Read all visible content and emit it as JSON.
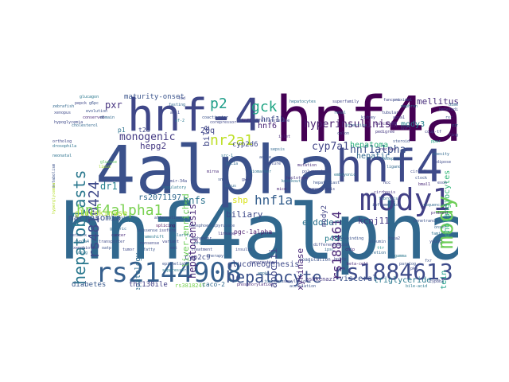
{
  "wordcloud": {
    "words": [
      {
        "text": "hnf4alpha",
        "color": "#31688e"
      },
      {
        "text": "4alpha",
        "color": "#3b518b"
      },
      {
        "text": "hnf4a",
        "color": "#440154"
      },
      {
        "text": "hnf4",
        "color": "#3e4a89"
      },
      {
        "text": "hnf-4",
        "color": "#3f4788"
      },
      {
        "text": "rs2144908",
        "color": "#355f8d"
      },
      {
        "text": "mody1",
        "color": "#424086"
      },
      {
        "text": "mody",
        "color": "#6ece58"
      },
      {
        "text": "rs1884613",
        "color": "#3e4c8a"
      },
      {
        "text": "hepatocyte",
        "color": "#3b528b"
      },
      {
        "text": "rs1884614",
        "color": "#482576"
      },
      {
        "text": "hepatoblasts",
        "color": "#2a788e"
      },
      {
        "text": "rs4810424",
        "color": "#3e4989"
      },
      {
        "text": "hnf4alpha1",
        "color": "#7ad151"
      },
      {
        "text": "hyperinsulinism",
        "color": "#481f70"
      },
      {
        "text": "gck",
        "color": "#21a685"
      },
      {
        "text": "p2",
        "color": "#1f9e89"
      },
      {
        "text": "nr2a1",
        "color": "#bddf26"
      },
      {
        "text": "hnf1a",
        "color": "#355f8d"
      },
      {
        "text": "monogenic",
        "color": "#443a83"
      },
      {
        "text": "hepatogenesis",
        "color": "#482878"
      },
      {
        "text": "cyp7a1",
        "color": "#414487"
      },
      {
        "text": "hnf1alpha",
        "color": "#3b518b"
      },
      {
        "text": "mody3",
        "color": "#26828e"
      },
      {
        "text": "hepatoma",
        "color": "#2db27d"
      },
      {
        "text": "hnf1b",
        "color": "#3e4a89"
      },
      {
        "text": "hnf6",
        "color": "#482475"
      },
      {
        "text": "mellitus",
        "color": "#472d7b"
      },
      {
        "text": "pxr",
        "color": "#46337f"
      },
      {
        "text": "bile",
        "color": "#3f4788"
      },
      {
        "text": "20q",
        "color": "#404588"
      },
      {
        "text": "hepg2",
        "color": "#453882"
      },
      {
        "text": "liver-enriched",
        "color": "#6ece58"
      },
      {
        "text": "maturity-onset",
        "color": "#3a548c"
      },
      {
        "text": "shp",
        "color": "#d8e219"
      },
      {
        "text": "hnfs",
        "color": "#2c728e"
      },
      {
        "text": "dr1",
        "color": "#26828e"
      },
      {
        "text": "macrosomia",
        "color": "#3b528b"
      },
      {
        "text": "rs2071197",
        "color": "#31688e"
      },
      {
        "text": "biliary",
        "color": "#3e4a89"
      },
      {
        "text": "glucokinase",
        "color": "#addc30"
      },
      {
        "text": "apociii",
        "color": "#404688"
      },
      {
        "text": "carboxykinase",
        "color": "#482878"
      },
      {
        "text": "endoderm",
        "color": "#2c728e"
      },
      {
        "text": "kcnj11",
        "color": "#443983"
      },
      {
        "text": "p450",
        "color": "#287c8e"
      },
      {
        "text": "hepatic",
        "color": "#31688e"
      },
      {
        "text": "cholangiocytes",
        "color": "#35b779"
      },
      {
        "text": "mody2",
        "color": "#414487"
      },
      {
        "text": "apolipoprotein",
        "color": "#1fa088"
      },
      {
        "text": "gluconeogenesis",
        "color": "#3e4989"
      },
      {
        "text": "pgc-1alpha",
        "color": "#481a6c"
      },
      {
        "text": "cyp2d6",
        "color": "#3f4889"
      },
      {
        "text": "cyp2c9",
        "color": "#3e4a89"
      },
      {
        "text": "hepatology",
        "color": "#2f6c8e"
      },
      {
        "text": "diabetes",
        "color": "#38598c"
      },
      {
        "text": "thr130ile",
        "color": "#424086"
      },
      {
        "text": "rs3818247",
        "color": "#7ad151"
      },
      {
        "text": "caco-2",
        "color": "#31688e"
      },
      {
        "text": "ashkenazi",
        "color": "#453781"
      },
      {
        "text": "visceral",
        "color": "#3b528b"
      },
      {
        "text": "triglyceride",
        "color": "#2a788e"
      },
      {
        "text": "t2d",
        "color": "#3f4788"
      },
      {
        "text": "p1",
        "color": "#2c728e"
      },
      {
        "text": "coagulation",
        "color": "#3b528b"
      },
      {
        "text": "hnf1",
        "color": "#482677"
      },
      {
        "text": "pancreatic",
        "color": "#404588"
      },
      {
        "text": "insulin",
        "color": "#3e4c8a"
      },
      {
        "text": "fatty",
        "color": "#3a548c"
      },
      {
        "text": "linkage",
        "color": "#453882"
      },
      {
        "text": "enhancer",
        "color": "#3e4989"
      },
      {
        "text": "promoter",
        "color": "#31688e"
      },
      {
        "text": "islet",
        "color": "#482878"
      },
      {
        "text": "hepatocytes",
        "color": "#2c728e"
      },
      {
        "text": "albumin",
        "color": "#3b528b"
      },
      {
        "text": "ttr",
        "color": "#21918c"
      },
      {
        "text": "apoa1",
        "color": "#443a83"
      },
      {
        "text": "hnf3",
        "color": "#3f4788"
      },
      {
        "text": "foxa2",
        "color": "#3e4a89"
      },
      {
        "text": "sulfotransferase",
        "color": "#404588"
      },
      {
        "text": "pedigree",
        "color": "#453882"
      },
      {
        "text": "superfamily",
        "color": "#414487"
      },
      {
        "text": "steroid",
        "color": "#3b528b"
      },
      {
        "text": "nuclear",
        "color": "#46327e"
      },
      {
        "text": "receptor",
        "color": "#2c728e"
      },
      {
        "text": "ligand",
        "color": "#31688e"
      },
      {
        "text": "phosphoenolpyruvate",
        "color": "#3b528b"
      },
      {
        "text": "alternative",
        "color": "#3e4989"
      },
      {
        "text": "splicing",
        "color": "#440154"
      },
      {
        "text": "isoform",
        "color": "#3f4788"
      },
      {
        "text": "variant",
        "color": "#404588"
      },
      {
        "text": "mutation",
        "color": "#472d7b"
      },
      {
        "text": "polymorphism",
        "color": "#3e4a89"
      },
      {
        "text": "haplotype",
        "color": "#46337f"
      },
      {
        "text": "lipid",
        "color": "#a5db36"
      },
      {
        "text": "glucose",
        "color": "#5ec962"
      },
      {
        "text": "metabolism",
        "color": "#3b528b"
      },
      {
        "text": "cholesterol",
        "color": "#31688e"
      },
      {
        "text": "hyperglycemia",
        "color": "#b5de2b"
      },
      {
        "text": "neonatal",
        "color": "#2c728e"
      },
      {
        "text": "hypoglycemia",
        "color": "#3e4989"
      },
      {
        "text": "proximal",
        "color": "#3b528b"
      },
      {
        "text": "nephron",
        "color": "#2a788e"
      },
      {
        "text": "kidney",
        "color": "#3f4788"
      },
      {
        "text": "intestine",
        "color": "#31688e"
      },
      {
        "text": "colon",
        "color": "#3b528b"
      },
      {
        "text": "fanconi",
        "color": "#404588"
      },
      {
        "text": "tubular",
        "color": "#3e4a89"
      },
      {
        "text": "renal",
        "color": "#2c728e"
      },
      {
        "text": "carcinoma",
        "color": "#482878"
      },
      {
        "text": "hcc",
        "color": "#3f4788"
      },
      {
        "text": "cirrhosis",
        "color": "#46337f"
      },
      {
        "text": "fibrosis",
        "color": "#2d708e"
      },
      {
        "text": "inflammation",
        "color": "#3b528b"
      },
      {
        "text": "obesity",
        "color": "#31688e"
      },
      {
        "text": "adipose",
        "color": "#3e4989"
      },
      {
        "text": "ppar",
        "color": "#20a486"
      },
      {
        "text": "coup-tf",
        "color": "#414487"
      },
      {
        "text": "rxr",
        "color": "#3b528b"
      },
      {
        "text": "heterodimer",
        "color": "#3f4788"
      },
      {
        "text": "dimer",
        "color": "#31688e"
      },
      {
        "text": "zinc",
        "color": "#2c728e"
      },
      {
        "text": "finger",
        "color": "#3e4a89"
      },
      {
        "text": "dna-binding",
        "color": "#3b528b"
      },
      {
        "text": "chip",
        "color": "#482475"
      },
      {
        "text": "ipsc",
        "color": "#31688e"
      },
      {
        "text": "differentiation",
        "color": "#3e4989"
      },
      {
        "text": "embryonic",
        "color": "#2a788e"
      },
      {
        "text": "hepatoblast",
        "color": "#3b528b"
      },
      {
        "text": "organogenesis",
        "color": "#3f4788"
      },
      {
        "text": "knockout",
        "color": "#2c728e"
      },
      {
        "text": "mice",
        "color": "#482878"
      },
      {
        "text": "sepsis",
        "color": "#31688e"
      },
      {
        "text": "acute",
        "color": "#3b528b"
      },
      {
        "text": "failure",
        "color": "#3e4a89"
      },
      {
        "text": "biomarker",
        "color": "#2c728e"
      },
      {
        "text": "gwas",
        "color": "#3f4788"
      },
      {
        "text": "locus",
        "color": "#31688e"
      },
      {
        "text": "snp",
        "color": "#3b528b"
      },
      {
        "text": "mirna",
        "color": "#482878"
      },
      {
        "text": "mir-34a",
        "color": "#3e4989"
      },
      {
        "text": "regulatory",
        "color": "#2a788e"
      },
      {
        "text": "network",
        "color": "#3b528b"
      },
      {
        "text": "cyp3a4",
        "color": "#31688e"
      },
      {
        "text": "xenobiotic",
        "color": "#3f4788"
      },
      {
        "text": "drug",
        "color": "#2c728e"
      },
      {
        "text": "transporter",
        "color": "#3e4a89"
      },
      {
        "text": "oatp",
        "color": "#3b528b"
      },
      {
        "text": "cancer",
        "color": "#482878"
      },
      {
        "text": "gastric",
        "color": "#31688e"
      },
      {
        "text": "tumor",
        "color": "#3e4989"
      },
      {
        "text": "suppressor",
        "color": "#2a788e"
      },
      {
        "text": "epithelial",
        "color": "#3b528b"
      },
      {
        "text": "emt",
        "color": "#3f4788"
      },
      {
        "text": "polarity",
        "color": "#2c728e"
      },
      {
        "text": "junction",
        "color": "#31688e"
      },
      {
        "text": "sumoylation",
        "color": "#3e4a89"
      },
      {
        "text": "acetylation",
        "color": "#3b528b"
      },
      {
        "text": "phosphorylation",
        "color": "#482878"
      },
      {
        "text": "ampk",
        "color": "#31688e"
      },
      {
        "text": "pka",
        "color": "#3e4989"
      },
      {
        "text": "bile-acid",
        "color": "#2a788e"
      },
      {
        "text": "fxr",
        "color": "#3b528b"
      },
      {
        "text": "cyp8b1",
        "color": "#3f4788"
      },
      {
        "text": "familial",
        "color": "#2c728e"
      },
      {
        "text": "onset",
        "color": "#31688e"
      },
      {
        "text": "young",
        "color": "#3e4a89"
      },
      {
        "text": "penetrance",
        "color": "#3b528b"
      },
      {
        "text": "proband",
        "color": "#482878"
      },
      {
        "text": "sequencing",
        "color": "#31688e"
      },
      {
        "text": "exon",
        "color": "#3e4989"
      },
      {
        "text": "frameshift",
        "color": "#2a788e"
      },
      {
        "text": "missense",
        "color": "#3b528b"
      },
      {
        "text": "nonsense",
        "color": "#3f4788"
      },
      {
        "text": "deletion",
        "color": "#2c728e"
      },
      {
        "text": "sulfonylurea",
        "color": "#31688e"
      },
      {
        "text": "treatment",
        "color": "#3e4a89"
      },
      {
        "text": "therapy",
        "color": "#3b528b"
      },
      {
        "text": "beta-cell",
        "color": "#482878"
      },
      {
        "text": "secretion",
        "color": "#31688e"
      },
      {
        "text": "hnf4g",
        "color": "#3e4989"
      },
      {
        "text": "gamma",
        "color": "#2a788e"
      },
      {
        "text": "paralog",
        "color": "#3b528b"
      },
      {
        "text": "ortholog",
        "color": "#3f4788"
      },
      {
        "text": "drosophila",
        "color": "#2c728e"
      },
      {
        "text": "zebrafish",
        "color": "#31688e"
      },
      {
        "text": "xenopus",
        "color": "#3e4a89"
      },
      {
        "text": "evolution",
        "color": "#3b528b"
      },
      {
        "text": "conserved",
        "color": "#482878"
      },
      {
        "text": "domain",
        "color": "#31688e"
      },
      {
        "text": "af-1",
        "color": "#3e4989"
      },
      {
        "text": "af-2",
        "color": "#2a788e"
      },
      {
        "text": "coactivator",
        "color": "#3b528b"
      },
      {
        "text": "corepressor",
        "color": "#3f4788"
      },
      {
        "text": "src-1",
        "color": "#2c728e"
      },
      {
        "text": "pgc1a",
        "color": "#31688e"
      },
      {
        "text": "circadian",
        "color": "#3e4a89"
      },
      {
        "text": "clock",
        "color": "#3b528b"
      },
      {
        "text": "bmal1",
        "color": "#482878"
      },
      {
        "text": "fasting",
        "color": "#31688e"
      },
      {
        "text": "fed",
        "color": "#3e4989"
      },
      {
        "text": "glucagon",
        "color": "#2a788e"
      },
      {
        "text": "g6pc",
        "color": "#3b528b"
      },
      {
        "text": "pepck",
        "color": "#3f4788"
      }
    ]
  }
}
